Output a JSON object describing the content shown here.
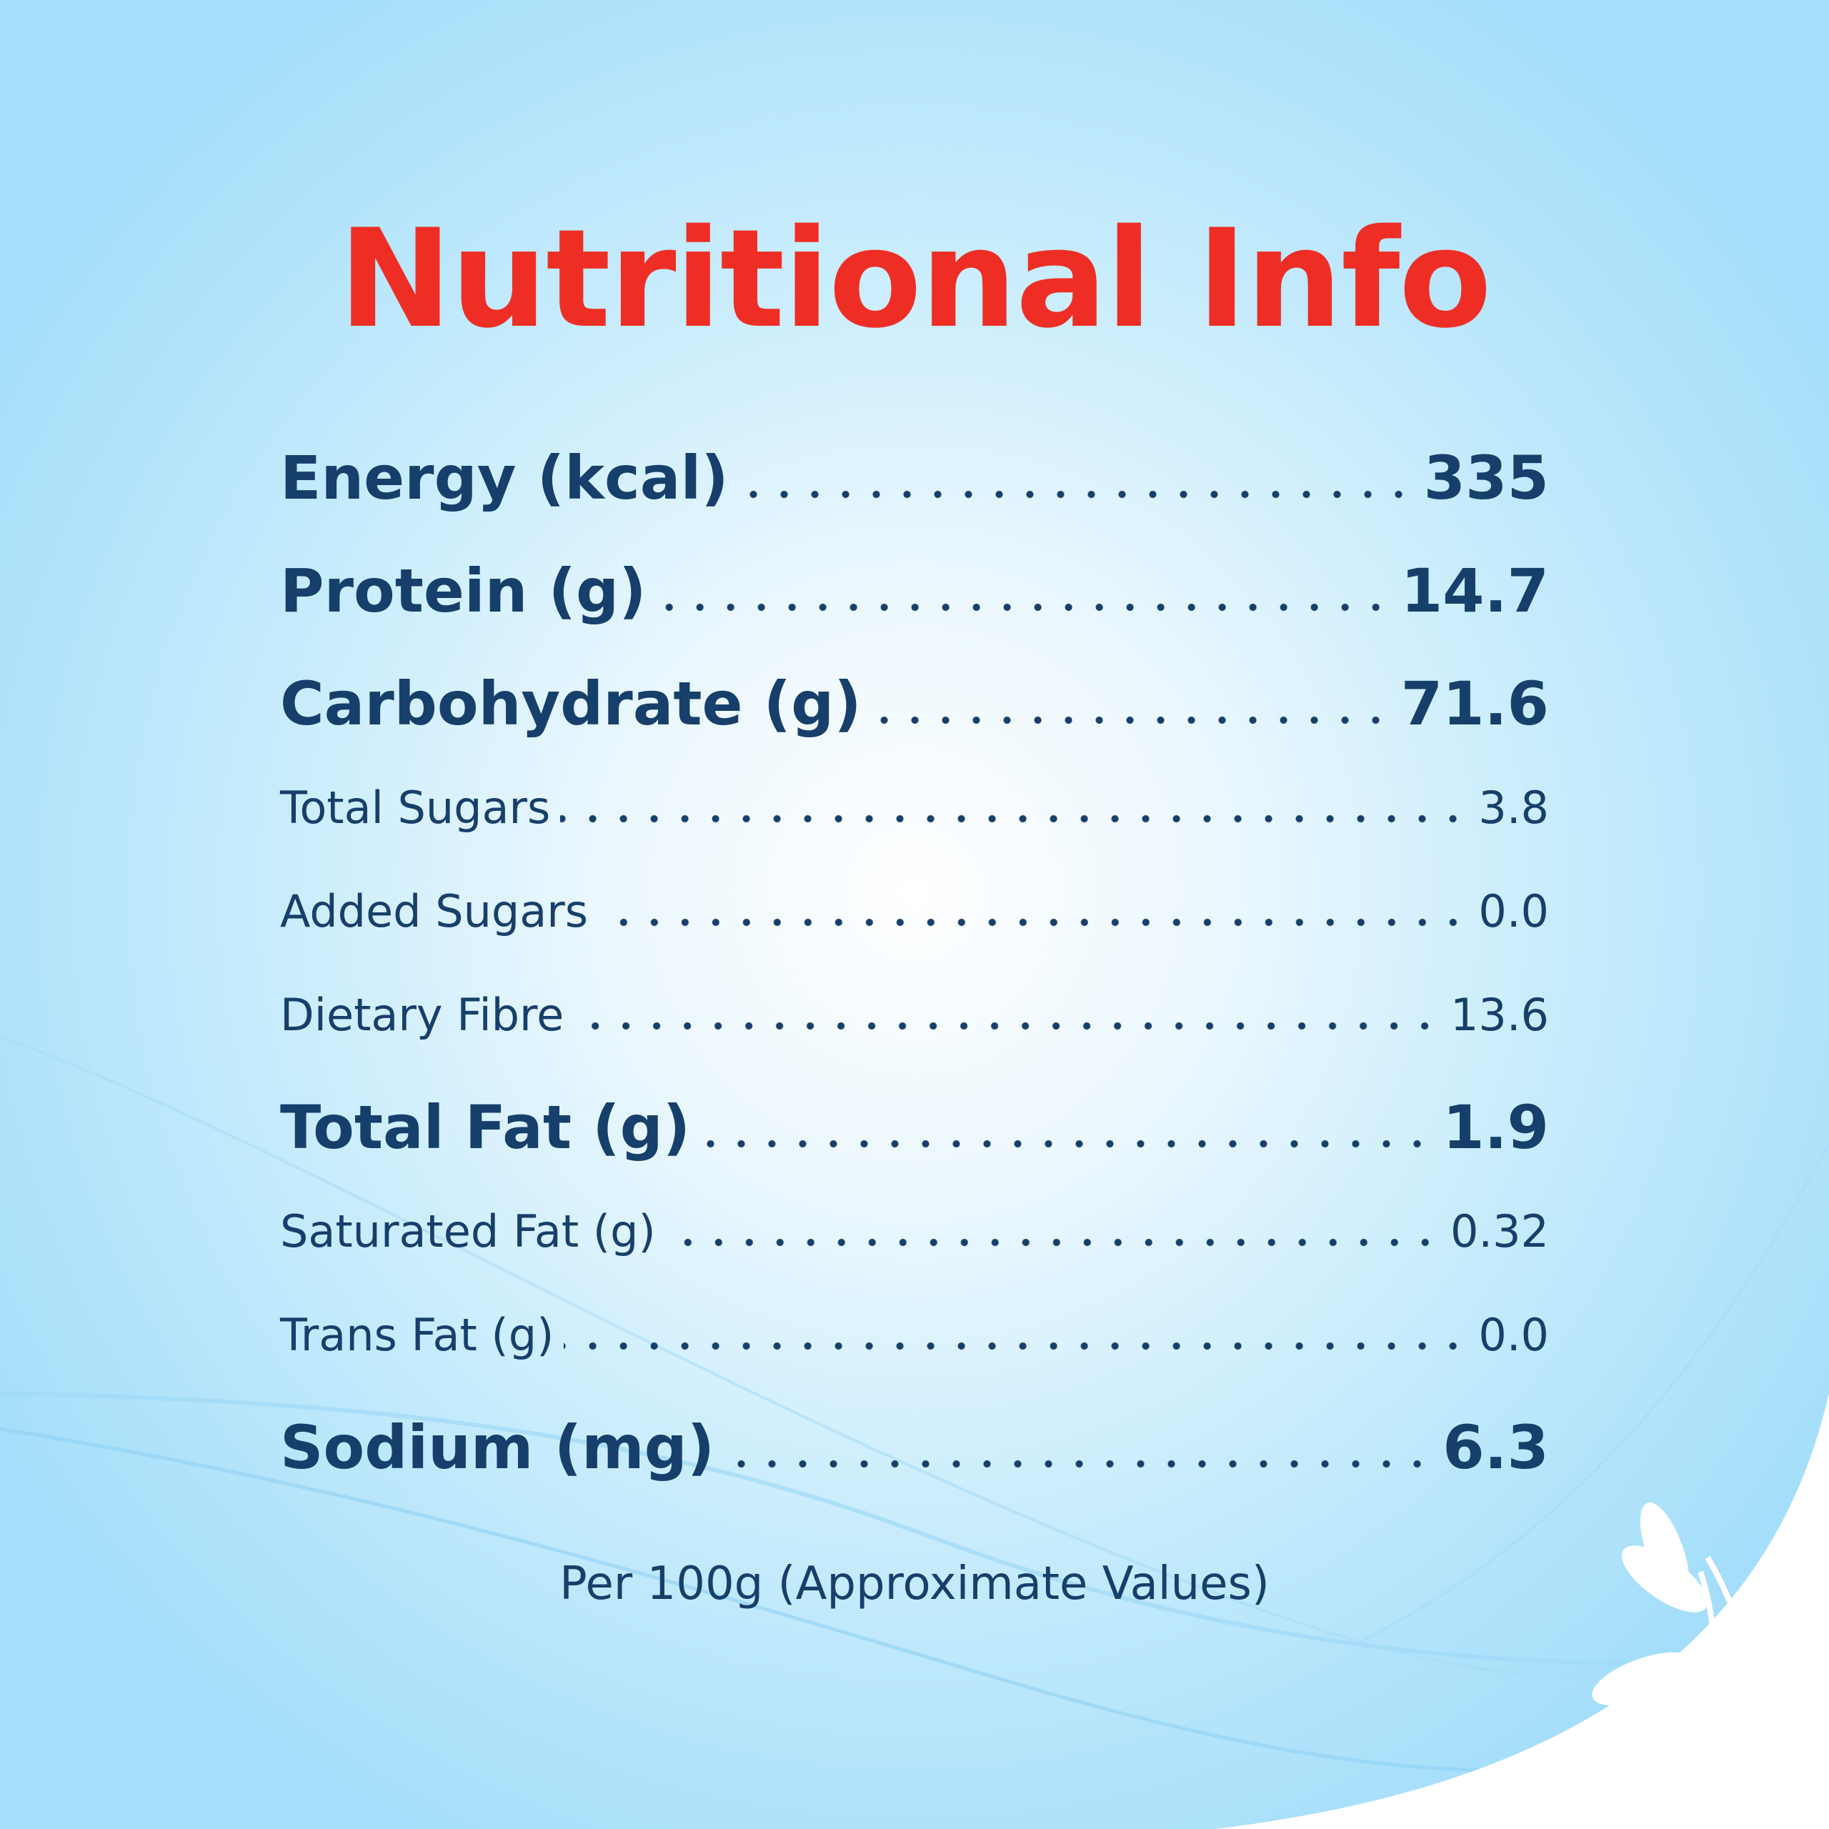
{
  "title": "Nutritional Info",
  "rows": [
    {
      "label": "Energy (kcal)",
      "value": "335"
    },
    {
      "label": "Protein (g)",
      "value": "14.7"
    },
    {
      "label": "Carbohydrate (g)",
      "value": "71.6"
    },
    {
      "label": "Total Sugars",
      "value": "3.8"
    },
    {
      "label": "Added Sugars",
      "value": "0.0"
    },
    {
      "label": "Dietary Fibre",
      "value": "13.6"
    },
    {
      "label": "Total Fat (g)",
      "value": "1.9"
    },
    {
      "label": "Saturated Fat (g)",
      "value": "0.32"
    },
    {
      "label": "Trans Fat (g)",
      "value": "0.0"
    },
    {
      "label": "Sodium (mg)",
      "value": "6.3"
    }
  ],
  "footnote": "Per 100g (Approximate Values)"
}
